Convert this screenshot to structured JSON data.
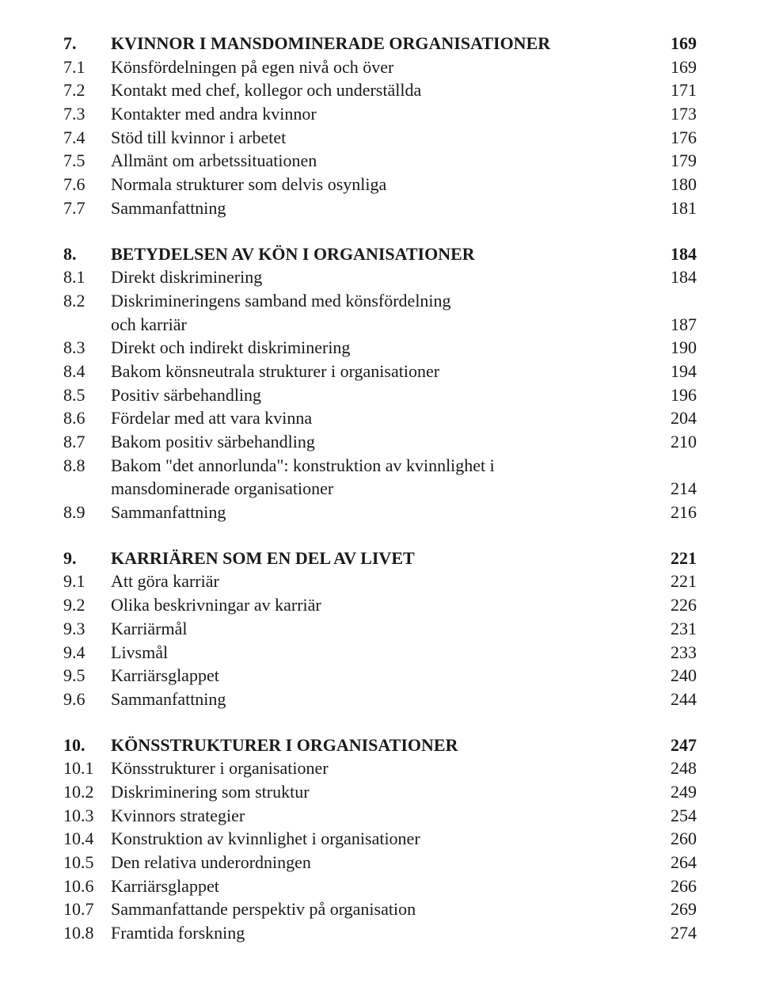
{
  "toc": {
    "sections": [
      {
        "rows": [
          {
            "num": "7.",
            "title": "KVINNOR I MANSDOMINERADE ORGANISATIONER",
            "page": "169",
            "bold": true
          },
          {
            "num": "7.1",
            "title": "Könsfördelningen på egen nivå och över",
            "page": "169"
          },
          {
            "num": "7.2",
            "title": "Kontakt med chef, kollegor och underställda",
            "page": "171"
          },
          {
            "num": "7.3",
            "title": "Kontakter med andra kvinnor",
            "page": "173"
          },
          {
            "num": "7.4",
            "title": "Stöd till kvinnor i arbetet",
            "page": "176"
          },
          {
            "num": "7.5",
            "title": "Allmänt om arbetssituationen",
            "page": "179"
          },
          {
            "num": "7.6",
            "title": "Normala strukturer som delvis osynliga",
            "page": "180"
          },
          {
            "num": "7.7",
            "title": "Sammanfattning",
            "page": "181"
          }
        ]
      },
      {
        "rows": [
          {
            "num": "8.",
            "title": "BETYDELSEN AV KÖN I ORGANISATIONER",
            "page": "184",
            "bold": true
          },
          {
            "num": "8.1",
            "title": "Direkt diskriminering",
            "page": "184"
          },
          {
            "num": "8.2",
            "title": "Diskrimineringens samband med könsfördelning",
            "cont": "och karriär",
            "page": "187"
          },
          {
            "num": "8.3",
            "title": "Direkt och indirekt diskriminering",
            "page": "190"
          },
          {
            "num": "8.4",
            "title": "Bakom könsneutrala strukturer i organisationer",
            "page": "194"
          },
          {
            "num": "8.5",
            "title": "Positiv särbehandling",
            "page": "196"
          },
          {
            "num": "8.6",
            "title": "Fördelar med att vara kvinna",
            "page": "204"
          },
          {
            "num": "8.7",
            "title": "Bakom positiv särbehandling",
            "page": "210"
          },
          {
            "num": "8.8",
            "title": "Bakom \"det annorlunda\": konstruktion av kvinnlighet i",
            "cont": "mansdominerade organisationer",
            "page": "214"
          },
          {
            "num": "8.9",
            "title": "Sammanfattning",
            "page": "216"
          }
        ]
      },
      {
        "rows": [
          {
            "num": "9.",
            "title": "KARRIÄREN SOM EN DEL AV LIVET",
            "page": "221",
            "bold": true
          },
          {
            "num": "9.1",
            "title": "Att göra karriär",
            "page": "221"
          },
          {
            "num": "9.2",
            "title": "Olika beskrivningar av karriär",
            "page": "226"
          },
          {
            "num": "9.3",
            "title": "Karriärmål",
            "page": "231"
          },
          {
            "num": "9.4",
            "title": "Livsmål",
            "page": "233"
          },
          {
            "num": "9.5",
            "title": "Karriärsglappet",
            "page": "240"
          },
          {
            "num": "9.6",
            "title": "Sammanfattning",
            "page": "244"
          }
        ]
      },
      {
        "rows": [
          {
            "num": "10.",
            "title": "KÖNSSTRUKTURER I ORGANISATIONER",
            "page": "247",
            "bold": true
          },
          {
            "num": "10.1",
            "title": "Könsstrukturer i organisationer",
            "page": "248"
          },
          {
            "num": "10.2",
            "title": "Diskriminering som struktur",
            "page": "249"
          },
          {
            "num": "10.3",
            "title": "Kvinnors strategier",
            "page": "254"
          },
          {
            "num": "10.4",
            "title": "Konstruktion av kvinnlighet i organisationer",
            "page": "260"
          },
          {
            "num": "10.5",
            "title": "Den relativa underordningen",
            "page": "264"
          },
          {
            "num": "10.6",
            "title": "Karriärsglappet",
            "page": "266"
          },
          {
            "num": "10.7",
            "title": "Sammanfattande perspektiv på organisation",
            "page": "269"
          },
          {
            "num": "10.8",
            "title": "Framtida forskning",
            "page": "274"
          }
        ]
      }
    ]
  }
}
